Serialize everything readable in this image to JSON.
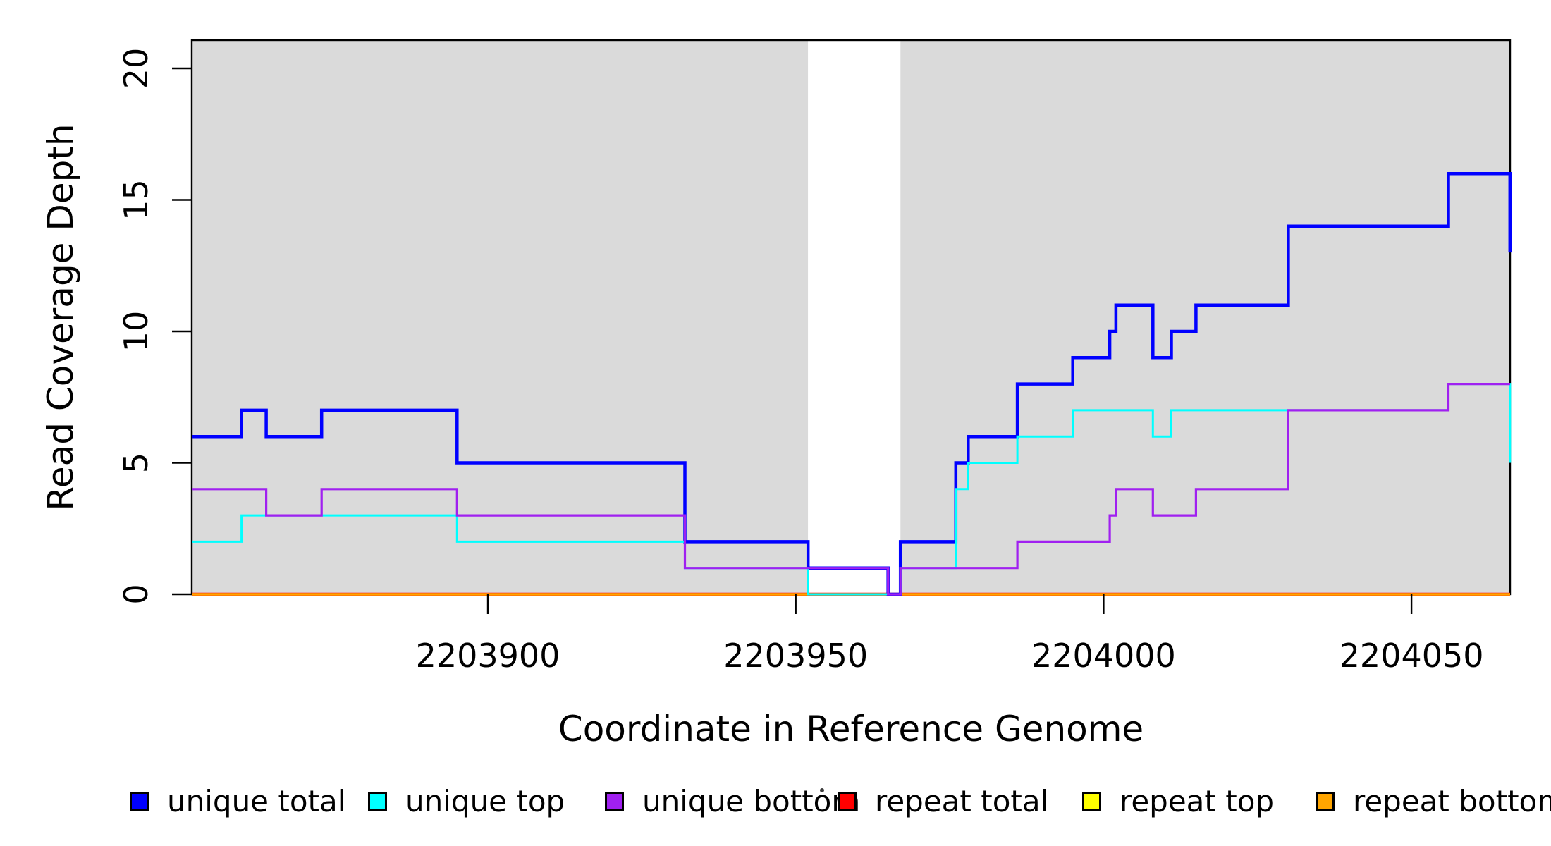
{
  "axes": {
    "x": {
      "label": "Coordinate in Reference Genome",
      "ticks": [
        2203900,
        2203950,
        2204000,
        2204050
      ],
      "range": [
        2203852,
        2204066
      ]
    },
    "y": {
      "label": "Read Coverage Depth",
      "ticks": [
        0,
        5,
        10,
        15,
        20
      ],
      "range": [
        0,
        21
      ]
    }
  },
  "chart_data": {
    "type": "line",
    "subtype": "step-coverage",
    "title": "",
    "xlabel": "Coordinate in Reference Genome",
    "ylabel": "Read Coverage Depth",
    "xlim": [
      2203852,
      2204066
    ],
    "ylim": [
      0,
      21
    ],
    "grid": false,
    "background": {
      "covered_regions": [
        [
          2203852,
          2203952
        ],
        [
          2203967,
          2204066
        ]
      ],
      "uncovered_gap": [
        [
          2203952,
          2203967
        ]
      ],
      "covered_color": "#DADADA",
      "uncovered_color": "#FFFFFF"
    },
    "series": [
      {
        "name": "unique total",
        "color": "#0000FF",
        "steps": [
          [
            2203852,
            6
          ],
          [
            2203860,
            7
          ],
          [
            2203864,
            6
          ],
          [
            2203873,
            7
          ],
          [
            2203895,
            5
          ],
          [
            2203932,
            2
          ],
          [
            2203952,
            1
          ],
          [
            2203965,
            0
          ],
          [
            2203967,
            2
          ],
          [
            2203976,
            5
          ],
          [
            2203978,
            6
          ],
          [
            2203986,
            8
          ],
          [
            2203995,
            9
          ],
          [
            2204001,
            10
          ],
          [
            2204002,
            11
          ],
          [
            2204008,
            9
          ],
          [
            2204011,
            10
          ],
          [
            2204015,
            11
          ],
          [
            2204030,
            14
          ],
          [
            2204056,
            16
          ],
          [
            2204066,
            13
          ]
        ]
      },
      {
        "name": "unique top",
        "color": "#00FFFF",
        "steps": [
          [
            2203852,
            2
          ],
          [
            2203860,
            3
          ],
          [
            2203895,
            2
          ],
          [
            2203932,
            1
          ],
          [
            2203952,
            0
          ],
          [
            2203967,
            1
          ],
          [
            2203976,
            4
          ],
          [
            2203978,
            5
          ],
          [
            2203986,
            6
          ],
          [
            2203995,
            7
          ],
          [
            2204008,
            6
          ],
          [
            2204011,
            7
          ],
          [
            2204056,
            8
          ],
          [
            2204066,
            5
          ]
        ]
      },
      {
        "name": "unique bottom",
        "color": "#A020F0",
        "steps": [
          [
            2203852,
            4
          ],
          [
            2203864,
            3
          ],
          [
            2203873,
            4
          ],
          [
            2203895,
            3
          ],
          [
            2203932,
            1
          ],
          [
            2203965,
            0
          ],
          [
            2203967,
            1
          ],
          [
            2203986,
            2
          ],
          [
            2204001,
            3
          ],
          [
            2204002,
            4
          ],
          [
            2204008,
            3
          ],
          [
            2204015,
            4
          ],
          [
            2204030,
            7
          ],
          [
            2204056,
            8
          ]
        ]
      },
      {
        "name": "repeat total",
        "color": "#FF0000",
        "steps": [
          [
            2203852,
            0
          ]
        ]
      },
      {
        "name": "repeat top",
        "color": "#FFFF00",
        "steps": [
          [
            2203852,
            0
          ]
        ]
      },
      {
        "name": "repeat bottom",
        "color": "#FFA500",
        "steps": [
          [
            2203852,
            0
          ]
        ]
      }
    ],
    "legend_position": "bottom"
  },
  "legend": {
    "items": [
      {
        "label": "unique total",
        "color": "#0000FF"
      },
      {
        "label": "unique top",
        "color": "#00FFFF"
      },
      {
        "label": "unique bottom",
        "color": "#A020F0"
      },
      {
        "label": "repeat total",
        "color": "#FF0000"
      },
      {
        "label": "repeat top",
        "color": "#FFFF00"
      },
      {
        "label": "repeat bottom",
        "color": "#FFA500"
      }
    ]
  },
  "colors": {
    "plot_background_covered": "#DADADA",
    "page_background": "#FFFFFF",
    "axis": "#000000"
  }
}
